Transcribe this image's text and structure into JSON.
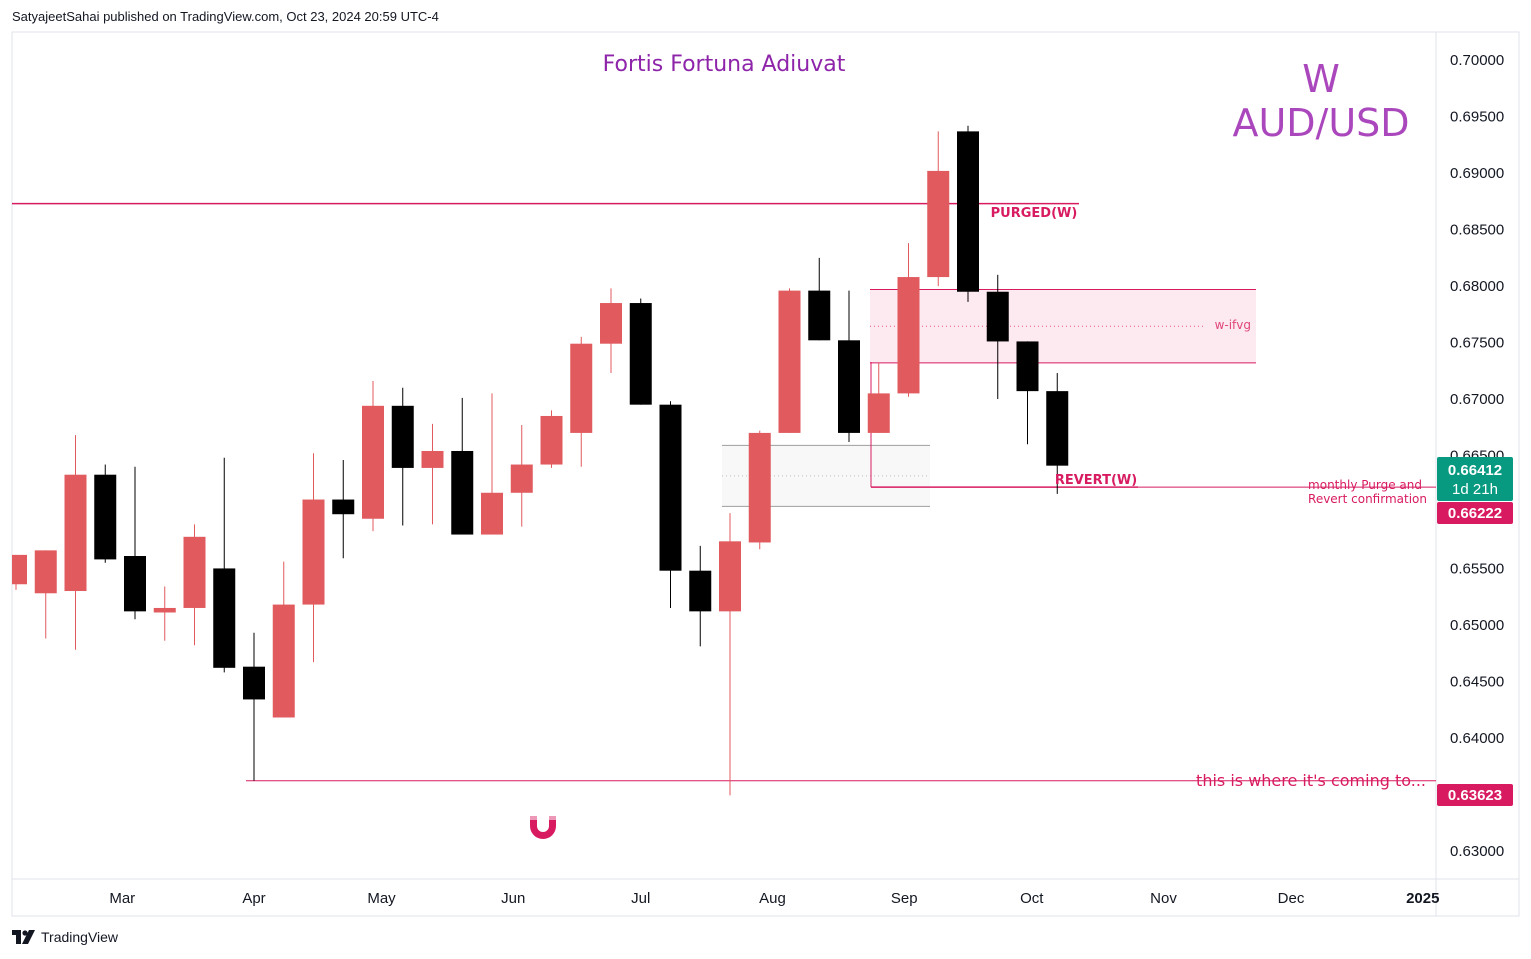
{
  "header": {
    "publisher_line": "SatyajeetSahai published on TradingView.com, Oct 23, 2024 20:59 UTC-4"
  },
  "footer": {
    "brand": "TradingView"
  },
  "colors": {
    "bull": "#e05a5e",
    "bear": "#000000",
    "accent": "#d81b60",
    "title": "#8e24aa",
    "symbol": "#ab47bc",
    "zone_fill": "#fce4ec",
    "last_price_bg": "#089981"
  },
  "chart_data": {
    "type": "candlestick",
    "title": "Fortis Fortuna Adiuvat",
    "timeframe": "W",
    "symbol": "AUD/USD",
    "ylim": [
      0.6275,
      0.7025
    ],
    "y_ticks": [
      "0.70000",
      "0.69500",
      "0.69000",
      "0.68500",
      "0.68000",
      "0.67500",
      "0.67000",
      "0.66500",
      "0.66000",
      "0.65500",
      "0.65000",
      "0.64500",
      "0.64000",
      "0.63500",
      "0.63000"
    ],
    "x_labels": [
      {
        "label": "Mar",
        "date": "2024-03-01"
      },
      {
        "label": "Apr",
        "date": "2024-04-01"
      },
      {
        "label": "May",
        "date": "2024-05-01"
      },
      {
        "label": "Jun",
        "date": "2024-06-01"
      },
      {
        "label": "Jul",
        "date": "2024-07-01"
      },
      {
        "label": "Aug",
        "date": "2024-08-01"
      },
      {
        "label": "Sep",
        "date": "2024-09-01"
      },
      {
        "label": "Oct",
        "date": "2024-10-01"
      },
      {
        "label": "Nov",
        "date": "2024-11-01"
      },
      {
        "label": "Dec",
        "date": "2024-12-01"
      },
      {
        "label": "2025",
        "date": "2025-01-01"
      }
    ],
    "candles": [
      {
        "date": "2024-02-05",
        "open": 0.6536,
        "high": 0.6562,
        "low": 0.6531,
        "close": 0.6562
      },
      {
        "date": "2024-02-12",
        "open": 0.6528,
        "high": 0.6566,
        "low": 0.6488,
        "close": 0.6566
      },
      {
        "date": "2024-02-19",
        "open": 0.653,
        "high": 0.6668,
        "low": 0.6478,
        "close": 0.6633
      },
      {
        "date": "2024-02-26",
        "open": 0.6633,
        "high": 0.6642,
        "low": 0.6555,
        "close": 0.6558
      },
      {
        "date": "2024-03-04",
        "open": 0.6561,
        "high": 0.664,
        "low": 0.6505,
        "close": 0.6512
      },
      {
        "date": "2024-03-11",
        "open": 0.6511,
        "high": 0.6534,
        "low": 0.6486,
        "close": 0.6515
      },
      {
        "date": "2024-03-18",
        "open": 0.6515,
        "high": 0.6589,
        "low": 0.6482,
        "close": 0.6578
      },
      {
        "date": "2024-03-25",
        "open": 0.655,
        "high": 0.6648,
        "low": 0.6458,
        "close": 0.6462
      },
      {
        "date": "2024-04-01",
        "open": 0.6463,
        "high": 0.6493,
        "low": 0.6362,
        "close": 0.6434
      },
      {
        "date": "2024-04-08",
        "open": 0.6418,
        "high": 0.6556,
        "low": 0.6418,
        "close": 0.6518
      },
      {
        "date": "2024-04-15",
        "open": 0.6518,
        "high": 0.6652,
        "low": 0.6467,
        "close": 0.6611
      },
      {
        "date": "2024-04-22",
        "open": 0.6611,
        "high": 0.6646,
        "low": 0.6559,
        "close": 0.6598
      },
      {
        "date": "2024-04-29",
        "open": 0.6594,
        "high": 0.6716,
        "low": 0.6583,
        "close": 0.6694
      },
      {
        "date": "2024-05-06",
        "open": 0.6694,
        "high": 0.671,
        "low": 0.6588,
        "close": 0.6639
      },
      {
        "date": "2024-05-13",
        "open": 0.6639,
        "high": 0.6678,
        "low": 0.6589,
        "close": 0.6654
      },
      {
        "date": "2024-05-20",
        "open": 0.6654,
        "high": 0.6701,
        "low": 0.658,
        "close": 0.658
      },
      {
        "date": "2024-05-27",
        "open": 0.658,
        "high": 0.6705,
        "low": 0.658,
        "close": 0.6617
      },
      {
        "date": "2024-06-03",
        "open": 0.6617,
        "high": 0.6677,
        "low": 0.6587,
        "close": 0.6642
      },
      {
        "date": "2024-06-10",
        "open": 0.6642,
        "high": 0.669,
        "low": 0.6639,
        "close": 0.6685
      },
      {
        "date": "2024-06-17",
        "open": 0.667,
        "high": 0.6755,
        "low": 0.664,
        "close": 0.6749
      },
      {
        "date": "2024-06-24",
        "open": 0.6749,
        "high": 0.6798,
        "low": 0.6723,
        "close": 0.6785
      },
      {
        "date": "2024-07-01",
        "open": 0.6785,
        "high": 0.6789,
        "low": 0.6695,
        "close": 0.6695
      },
      {
        "date": "2024-07-08",
        "open": 0.6695,
        "high": 0.6698,
        "low": 0.6515,
        "close": 0.6548
      },
      {
        "date": "2024-07-15",
        "open": 0.6548,
        "high": 0.657,
        "low": 0.6481,
        "close": 0.6512
      },
      {
        "date": "2024-07-22",
        "open": 0.6512,
        "high": 0.6599,
        "low": 0.6349,
        "close": 0.6574
      },
      {
        "date": "2024-07-29",
        "open": 0.6573,
        "high": 0.6672,
        "low": 0.6567,
        "close": 0.667
      },
      {
        "date": "2024-08-05",
        "open": 0.667,
        "high": 0.6798,
        "low": 0.667,
        "close": 0.6796
      },
      {
        "date": "2024-08-12",
        "open": 0.6796,
        "high": 0.6825,
        "low": 0.6752,
        "close": 0.6752
      },
      {
        "date": "2024-08-19",
        "open": 0.6752,
        "high": 0.6796,
        "low": 0.6662,
        "close": 0.667
      },
      {
        "date": "2024-08-26",
        "open": 0.667,
        "high": 0.6732,
        "low": 0.667,
        "close": 0.6705
      },
      {
        "date": "2024-09-02",
        "open": 0.6705,
        "high": 0.6838,
        "low": 0.6702,
        "close": 0.6808
      },
      {
        "date": "2024-09-09",
        "open": 0.6808,
        "high": 0.6937,
        "low": 0.68,
        "close": 0.6902
      },
      {
        "date": "2024-09-16",
        "open": 0.6937,
        "high": 0.6942,
        "low": 0.6786,
        "close": 0.6795
      },
      {
        "date": "2024-09-23",
        "open": 0.6795,
        "high": 0.681,
        "low": 0.67,
        "close": 0.6751
      },
      {
        "date": "2024-09-30",
        "open": 0.6751,
        "high": 0.6751,
        "low": 0.666,
        "close": 0.6707
      },
      {
        "date": "2024-10-07",
        "open": 0.6707,
        "high": 0.6723,
        "low": 0.6616,
        "close": 0.6641
      }
    ],
    "lines": [
      {
        "label": "PURGED(W)",
        "price": 0.6873
      },
      {
        "label": "REVERT(W)",
        "price": 0.6622
      },
      {
        "label": "this is where it's coming to...",
        "price": 0.6362
      }
    ],
    "zones": [
      {
        "label": "w-ifvg",
        "top": 0.6797,
        "bottom": 0.6732
      },
      {
        "label": "",
        "top": 0.6659,
        "bottom": 0.6605
      }
    ],
    "annotations": {
      "monthly_note_line1": "monthly Purge and",
      "monthly_note_line2": "Revert confirmation",
      "magnet_icon": "magnet-icon"
    },
    "price_labels": {
      "last_price": "0.66412",
      "countdown": "1d 21h",
      "revert_price": "0.66222",
      "target_price": "0.63623"
    }
  }
}
